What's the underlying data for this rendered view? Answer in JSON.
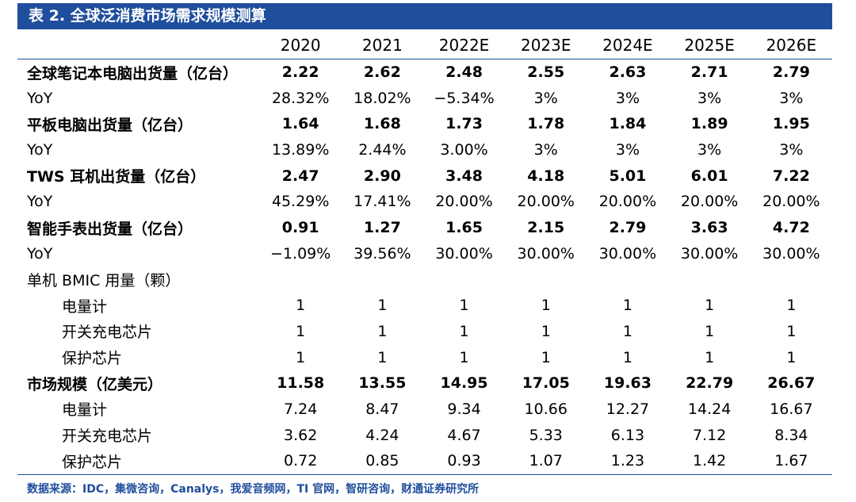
{
  "title": "表 2. 全球泛消费市场需求规模测算",
  "headers": [
    "",
    "2020",
    "2021",
    "2022E",
    "2023E",
    "2024E",
    "2025E",
    "2026E"
  ],
  "rows": [
    {
      "label": "全球笔记本电脑出货量（亿台）",
      "bold": true,
      "indent": false,
      "values": [
        "2.22",
        "2.62",
        "2.48",
        "2.55",
        "2.63",
        "2.71",
        "2.79"
      ]
    },
    {
      "label": "YoY",
      "bold": false,
      "indent": false,
      "values": [
        "28.32%",
        "18.02%",
        "−5.34%",
        "3%",
        "3%",
        "3%",
        "3%"
      ]
    },
    {
      "label": "平板电脑出货量（亿台）",
      "bold": true,
      "indent": false,
      "values": [
        "1.64",
        "1.68",
        "1.73",
        "1.78",
        "1.84",
        "1.89",
        "1.95"
      ]
    },
    {
      "label": "YoY",
      "bold": false,
      "indent": false,
      "values": [
        "13.89%",
        "2.44%",
        "3.00%",
        "3%",
        "3%",
        "3%",
        "3%"
      ]
    },
    {
      "label": "TWS 耳机出货量（亿台）",
      "bold": true,
      "indent": false,
      "values": [
        "2.47",
        "2.90",
        "3.48",
        "4.18",
        "5.01",
        "6.01",
        "7.22"
      ]
    },
    {
      "label": "YoY",
      "bold": false,
      "indent": false,
      "values": [
        "45.29%",
        "17.41%",
        "20.00%",
        "20.00%",
        "20.00%",
        "20.00%",
        "20.00%"
      ]
    },
    {
      "label": "智能手表出货量（亿台）",
      "bold": true,
      "indent": false,
      "values": [
        "0.91",
        "1.27",
        "1.65",
        "2.15",
        "2.79",
        "3.63",
        "4.72"
      ]
    },
    {
      "label": "YoY",
      "bold": false,
      "indent": false,
      "values": [
        "−1.09%",
        "39.56%",
        "30.00%",
        "30.00%",
        "30.00%",
        "30.00%",
        "30.00%"
      ]
    },
    {
      "label": "单机 BMIC 用量（颗）",
      "bold": false,
      "indent": false,
      "values": [
        "",
        "",
        "",
        "",
        "",
        "",
        ""
      ]
    },
    {
      "label": "电量计",
      "bold": false,
      "indent": true,
      "values": [
        "1",
        "1",
        "1",
        "1",
        "1",
        "1",
        "1"
      ]
    },
    {
      "label": "开关充电芯片",
      "bold": false,
      "indent": true,
      "values": [
        "1",
        "1",
        "1",
        "1",
        "1",
        "1",
        "1"
      ]
    },
    {
      "label": "保护芯片",
      "bold": false,
      "indent": true,
      "values": [
        "1",
        "1",
        "1",
        "1",
        "1",
        "1",
        "1"
      ]
    },
    {
      "label": "市场规模（亿美元）",
      "bold": true,
      "indent": false,
      "values": [
        "11.58",
        "13.55",
        "14.95",
        "17.05",
        "19.63",
        "22.79",
        "26.67"
      ]
    },
    {
      "label": "电量计",
      "bold": false,
      "indent": true,
      "values": [
        "7.24",
        "8.47",
        "9.34",
        "10.66",
        "12.27",
        "14.24",
        "16.67"
      ]
    },
    {
      "label": "开关充电芯片",
      "bold": false,
      "indent": true,
      "values": [
        "3.62",
        "4.24",
        "4.67",
        "5.33",
        "6.13",
        "7.12",
        "8.34"
      ]
    },
    {
      "label": "保护芯片",
      "bold": false,
      "indent": true,
      "values": [
        "0.72",
        "0.85",
        "0.93",
        "1.07",
        "1.23",
        "1.42",
        "1.67"
      ]
    }
  ],
  "source": "数据来源：IDC，集微咨询，Canalys，我爱音频网，TI 官网，智研咨询，财通证券研究所",
  "colors": {
    "accent": "#1f4e9c",
    "title_text": "#ffffff"
  }
}
